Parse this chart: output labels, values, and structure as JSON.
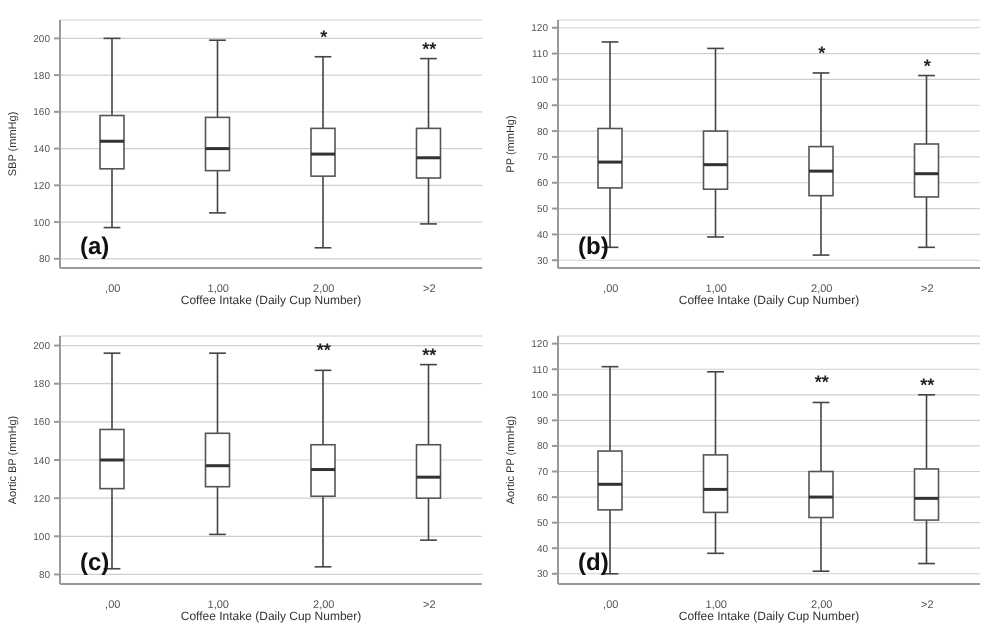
{
  "chart_data": [
    {
      "type": "box",
      "categories": [
        ",00",
        "1,00",
        "2,00",
        ">2"
      ],
      "xlabel": "Coffee Intake (Daily Cup Number)",
      "ylabel": "SBP (mmHg)",
      "ylim": [
        75,
        210
      ],
      "yticks": [
        80,
        100,
        120,
        140,
        160,
        180,
        200
      ],
      "grid": "y",
      "boxes": [
        {
          "low": 97,
          "q1": 129,
          "median": 144,
          "q3": 158,
          "high": 200
        },
        {
          "low": 105,
          "q1": 128,
          "median": 140,
          "q3": 157,
          "high": 199
        },
        {
          "low": 86,
          "q1": 125,
          "median": 137,
          "q3": 151,
          "high": 190
        },
        {
          "low": 99,
          "q1": 124,
          "median": 135,
          "q3": 151,
          "high": 189
        }
      ],
      "annotations": [
        "(a)",
        "*",
        "**"
      ]
    },
    {
      "type": "box",
      "categories": [
        ",00",
        "1,00",
        "2,00",
        ">2"
      ],
      "xlabel": "Coffee Intake (Daily Cup Number)",
      "ylabel": "PP (mmHg)",
      "ylim": [
        27,
        123
      ],
      "yticks": [
        30,
        40,
        50,
        60,
        70,
        80,
        90,
        100,
        110,
        120
      ],
      "grid": "y",
      "boxes": [
        {
          "low": 35,
          "q1": 58,
          "median": 68,
          "q3": 81,
          "high": 114.5
        },
        {
          "low": 39,
          "q1": 57.5,
          "median": 67,
          "q3": 80,
          "high": 112
        },
        {
          "low": 32,
          "q1": 55,
          "median": 64.5,
          "q3": 74,
          "high": 102.5
        },
        {
          "low": 35,
          "q1": 54.5,
          "median": 63.5,
          "q3": 75,
          "high": 101.5
        }
      ],
      "annotations": [
        "(b)",
        "*",
        "*"
      ]
    },
    {
      "type": "box",
      "categories": [
        ",00",
        "1,00",
        "2,00",
        ">2"
      ],
      "xlabel": "Coffee Intake (Daily Cup Number)",
      "ylabel": "Aortic BP (mmHg)",
      "ylim": [
        75,
        205
      ],
      "yticks": [
        80,
        100,
        120,
        140,
        160,
        180,
        200
      ],
      "grid": "y",
      "boxes": [
        {
          "low": 83,
          "q1": 125,
          "median": 140,
          "q3": 156,
          "high": 196
        },
        {
          "low": 101,
          "q1": 126,
          "median": 137,
          "q3": 154,
          "high": 196
        },
        {
          "low": 84,
          "q1": 121,
          "median": 135,
          "q3": 148,
          "high": 187
        },
        {
          "low": 98,
          "q1": 120,
          "median": 131,
          "q3": 148,
          "high": 190
        }
      ],
      "annotations": [
        "(c)",
        "**",
        "**"
      ]
    },
    {
      "type": "box",
      "categories": [
        ",00",
        "1,00",
        "2,00",
        ">2"
      ],
      "xlabel": "Coffee Intake (Daily Cup Number)",
      "ylabel": "Aortic PP (mmHg)",
      "ylim": [
        26,
        123
      ],
      "yticks": [
        30,
        40,
        50,
        60,
        70,
        80,
        90,
        100,
        110,
        120
      ],
      "grid": "y",
      "boxes": [
        {
          "low": 30,
          "q1": 55,
          "median": 65,
          "q3": 78,
          "high": 111
        },
        {
          "low": 38,
          "q1": 54,
          "median": 63,
          "q3": 76.5,
          "high": 109
        },
        {
          "low": 31,
          "q1": 52,
          "median": 60,
          "q3": 70,
          "high": 97
        },
        {
          "low": 34,
          "q1": 51,
          "median": 59.5,
          "q3": 71,
          "high": 100
        }
      ],
      "annotations": [
        "(d)",
        "**",
        "**"
      ]
    }
  ]
}
